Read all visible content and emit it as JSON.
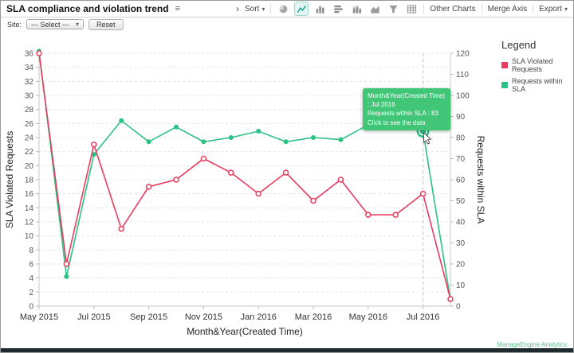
{
  "window": {
    "title": "SLA compliance and violation trend"
  },
  "toolbar": {
    "sort_label": "Sort",
    "other_charts_label": "Other Charts",
    "merge_axis_label": "Merge Axis",
    "export_label": "Export",
    "chart_type_icons": [
      "pie-chart",
      "line-chart",
      "column-chart",
      "bar-chart",
      "stacked-column-chart",
      "area-chart",
      "funnel-chart",
      "table-chart"
    ]
  },
  "filters": {
    "site_label": "Site:",
    "site_value": "--- Select ---",
    "reset_label": "Reset"
  },
  "legend": {
    "title": "Legend",
    "items": [
      {
        "label": "SLA Violated Requests",
        "color": "#e73c5e"
      },
      {
        "label": "Requests within SLA",
        "color": "#2cc185"
      }
    ]
  },
  "tooltip": {
    "line1": "Month&Year(Created Time) : Jul 2016",
    "line2": "Requests within SLA : 83",
    "line3": "Click to see the data",
    "bg": "#41c677"
  },
  "watermark": "ManageEngine Analytics",
  "chart_data": {
    "type": "line",
    "x": [
      "May 2015",
      "Jun 2015",
      "Jul 2015",
      "Aug 2015",
      "Sep 2015",
      "Oct 2015",
      "Nov 2015",
      "Dec 2015",
      "Jan 2016",
      "Feb 2016",
      "Mar 2016",
      "Apr 2016",
      "May 2016",
      "Jun 2016",
      "Jul 2016",
      "Aug 2016"
    ],
    "x_tick_every": 2,
    "xlabel": "Month&Year(Created Time)",
    "y_left": {
      "label": "SLA Violated Requests",
      "min": 0,
      "max": 36,
      "step": 2
    },
    "y_right": {
      "label": "Requests within SLA",
      "min": 0,
      "max": 120,
      "step": 10
    },
    "grid": "dashed-horizontal",
    "legend_position": "right",
    "series": [
      {
        "name": "SLA Violated Requests",
        "axis": "left",
        "color": "#e73c5e",
        "marker": "hollow",
        "values": [
          36,
          6,
          23,
          11,
          17,
          18,
          21,
          19,
          16,
          19,
          15,
          18,
          13,
          13,
          16,
          1
        ]
      },
      {
        "name": "Requests within SLA",
        "axis": "right",
        "color": "#2cc185",
        "marker": "solid",
        "values": [
          121,
          14,
          72,
          88,
          78,
          85,
          78,
          80,
          83,
          78,
          80,
          79,
          86,
          90,
          83,
          3
        ]
      }
    ],
    "highlight": {
      "series": "Requests within SLA",
      "x": "Jul 2016",
      "value": 83
    }
  }
}
